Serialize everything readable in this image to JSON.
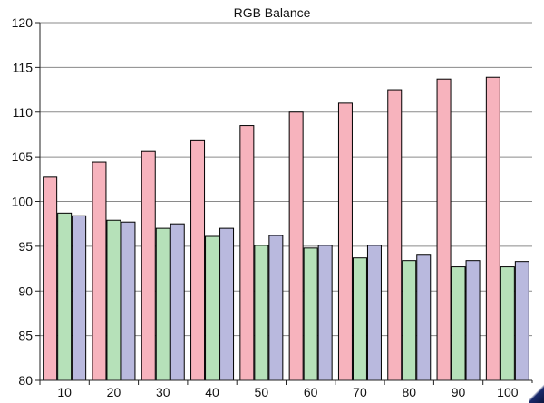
{
  "chart_data": {
    "type": "bar",
    "title": "RGB Balance",
    "xlabel": "",
    "ylabel": "",
    "categories": [
      "10",
      "20",
      "30",
      "40",
      "50",
      "60",
      "70",
      "80",
      "90",
      "100"
    ],
    "series": [
      {
        "color": "#f7b3bd",
        "values": [
          102.8,
          104.4,
          105.6,
          106.8,
          108.5,
          110.0,
          111.0,
          112.5,
          113.7,
          113.9
        ]
      },
      {
        "color": "#b6e1b9",
        "values": [
          98.7,
          97.9,
          97.0,
          96.1,
          95.1,
          94.8,
          93.7,
          93.4,
          92.7,
          92.7
        ]
      },
      {
        "color": "#b9b9de",
        "values": [
          98.4,
          97.7,
          97.5,
          97.0,
          96.2,
          95.1,
          95.1,
          94.0,
          93.4,
          93.3
        ]
      }
    ],
    "ylim": [
      80,
      120
    ],
    "yticks": [
      80,
      85,
      90,
      95,
      100,
      105,
      110,
      115,
      120
    ],
    "grid": true,
    "legend": "none"
  }
}
